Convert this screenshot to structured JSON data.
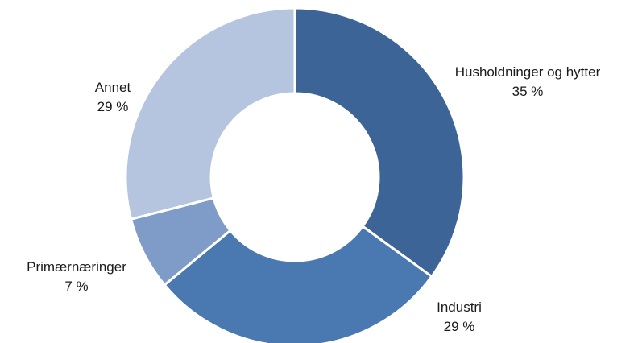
{
  "chart_data": {
    "type": "pie",
    "donut": true,
    "title": "",
    "series": [
      {
        "name": "Husholdninger og hytter",
        "value": 35,
        "value_label": "35 %",
        "color": "#3c6497"
      },
      {
        "name": "Industri",
        "value": 29,
        "value_label": "29 %",
        "color": "#4a78b0"
      },
      {
        "name": "Primærnæringer",
        "value": 7,
        "value_label": "7 %",
        "color": "#7f9cc8"
      },
      {
        "name": "Annet",
        "value": 29,
        "value_label": "29 %",
        "color": "#b5c4df"
      }
    ],
    "legend": "none",
    "labels": "outside"
  }
}
